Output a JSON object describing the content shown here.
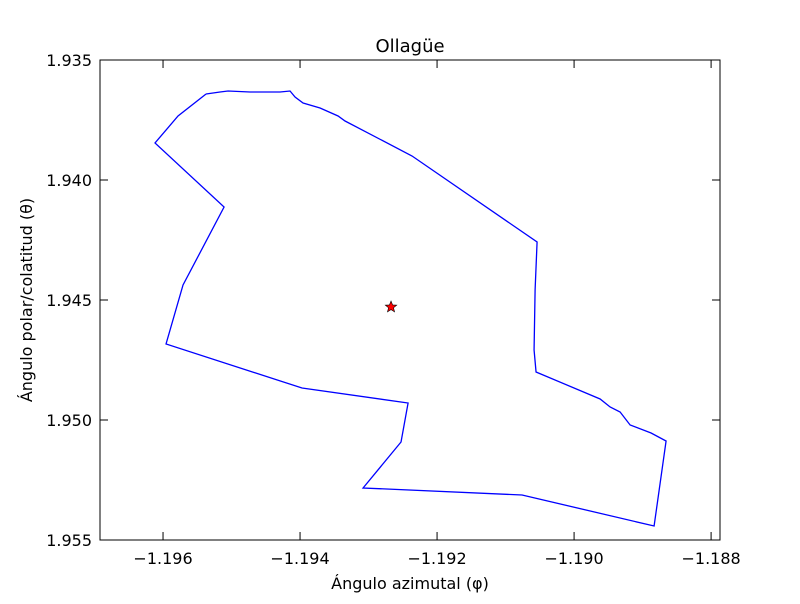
{
  "chart_data": {
    "type": "line",
    "title": "Ollagüe",
    "xlabel": "Ángulo azimutal (φ)",
    "ylabel": "Ángulo polar/colatitud (θ)",
    "xlim": [
      -1.19692,
      -1.18787
    ],
    "xticks": [
      {
        "value": -1.196,
        "label": "−1.196"
      },
      {
        "value": -1.194,
        "label": "−1.194"
      },
      {
        "value": -1.192,
        "label": "−1.192"
      },
      {
        "value": -1.19,
        "label": "−1.190"
      },
      {
        "value": -1.188,
        "label": "−1.188"
      }
    ],
    "ylim": [
      1.955,
      1.935
    ],
    "yticks": [
      1.935,
      {
        "value": 1.94,
        "label": "1.940"
      },
      1.945,
      {
        "value": 1.95,
        "label": "1.950"
      },
      1.955
    ],
    "series": [
      {
        "color": "#0000ff",
        "x": [
          -1.195372,
          -1.195781,
          -1.196117,
          -1.195109,
          -1.195708,
          -1.195956,
          -1.193971,
          -1.192423,
          -1.192526,
          -1.19308,
          -1.190759,
          -1.188832,
          -1.188657,
          -1.188876,
          -1.189182,
          -1.189328,
          -1.189474,
          -1.18962,
          -1.190555,
          -1.190584,
          -1.190569,
          -1.19054,
          -1.192365,
          -1.193343,
          -1.193445,
          -1.193708,
          -1.193956,
          -1.194073,
          -1.194146,
          -1.194292,
          -1.19473,
          -1.195051,
          -1.195168,
          -1.195372
        ],
        "values": [
          1.936417,
          1.937333,
          1.938458,
          1.941125,
          1.944375,
          1.946833,
          1.948667,
          1.949292,
          1.950917,
          1.952833,
          1.953125,
          1.954417,
          1.950875,
          1.950542,
          1.950208,
          1.949667,
          1.949458,
          1.949125,
          1.948,
          1.947083,
          1.944583,
          1.942583,
          1.939,
          1.937542,
          1.937333,
          1.937,
          1.936792,
          1.936542,
          1.936292,
          1.936333,
          1.936333,
          1.936292,
          1.936333,
          1.936417
        ]
      },
      {
        "color": "#ff0000",
        "marker": "star",
        "x": [
          -1.192672
        ],
        "values": [
          1.945292
        ]
      }
    ]
  }
}
